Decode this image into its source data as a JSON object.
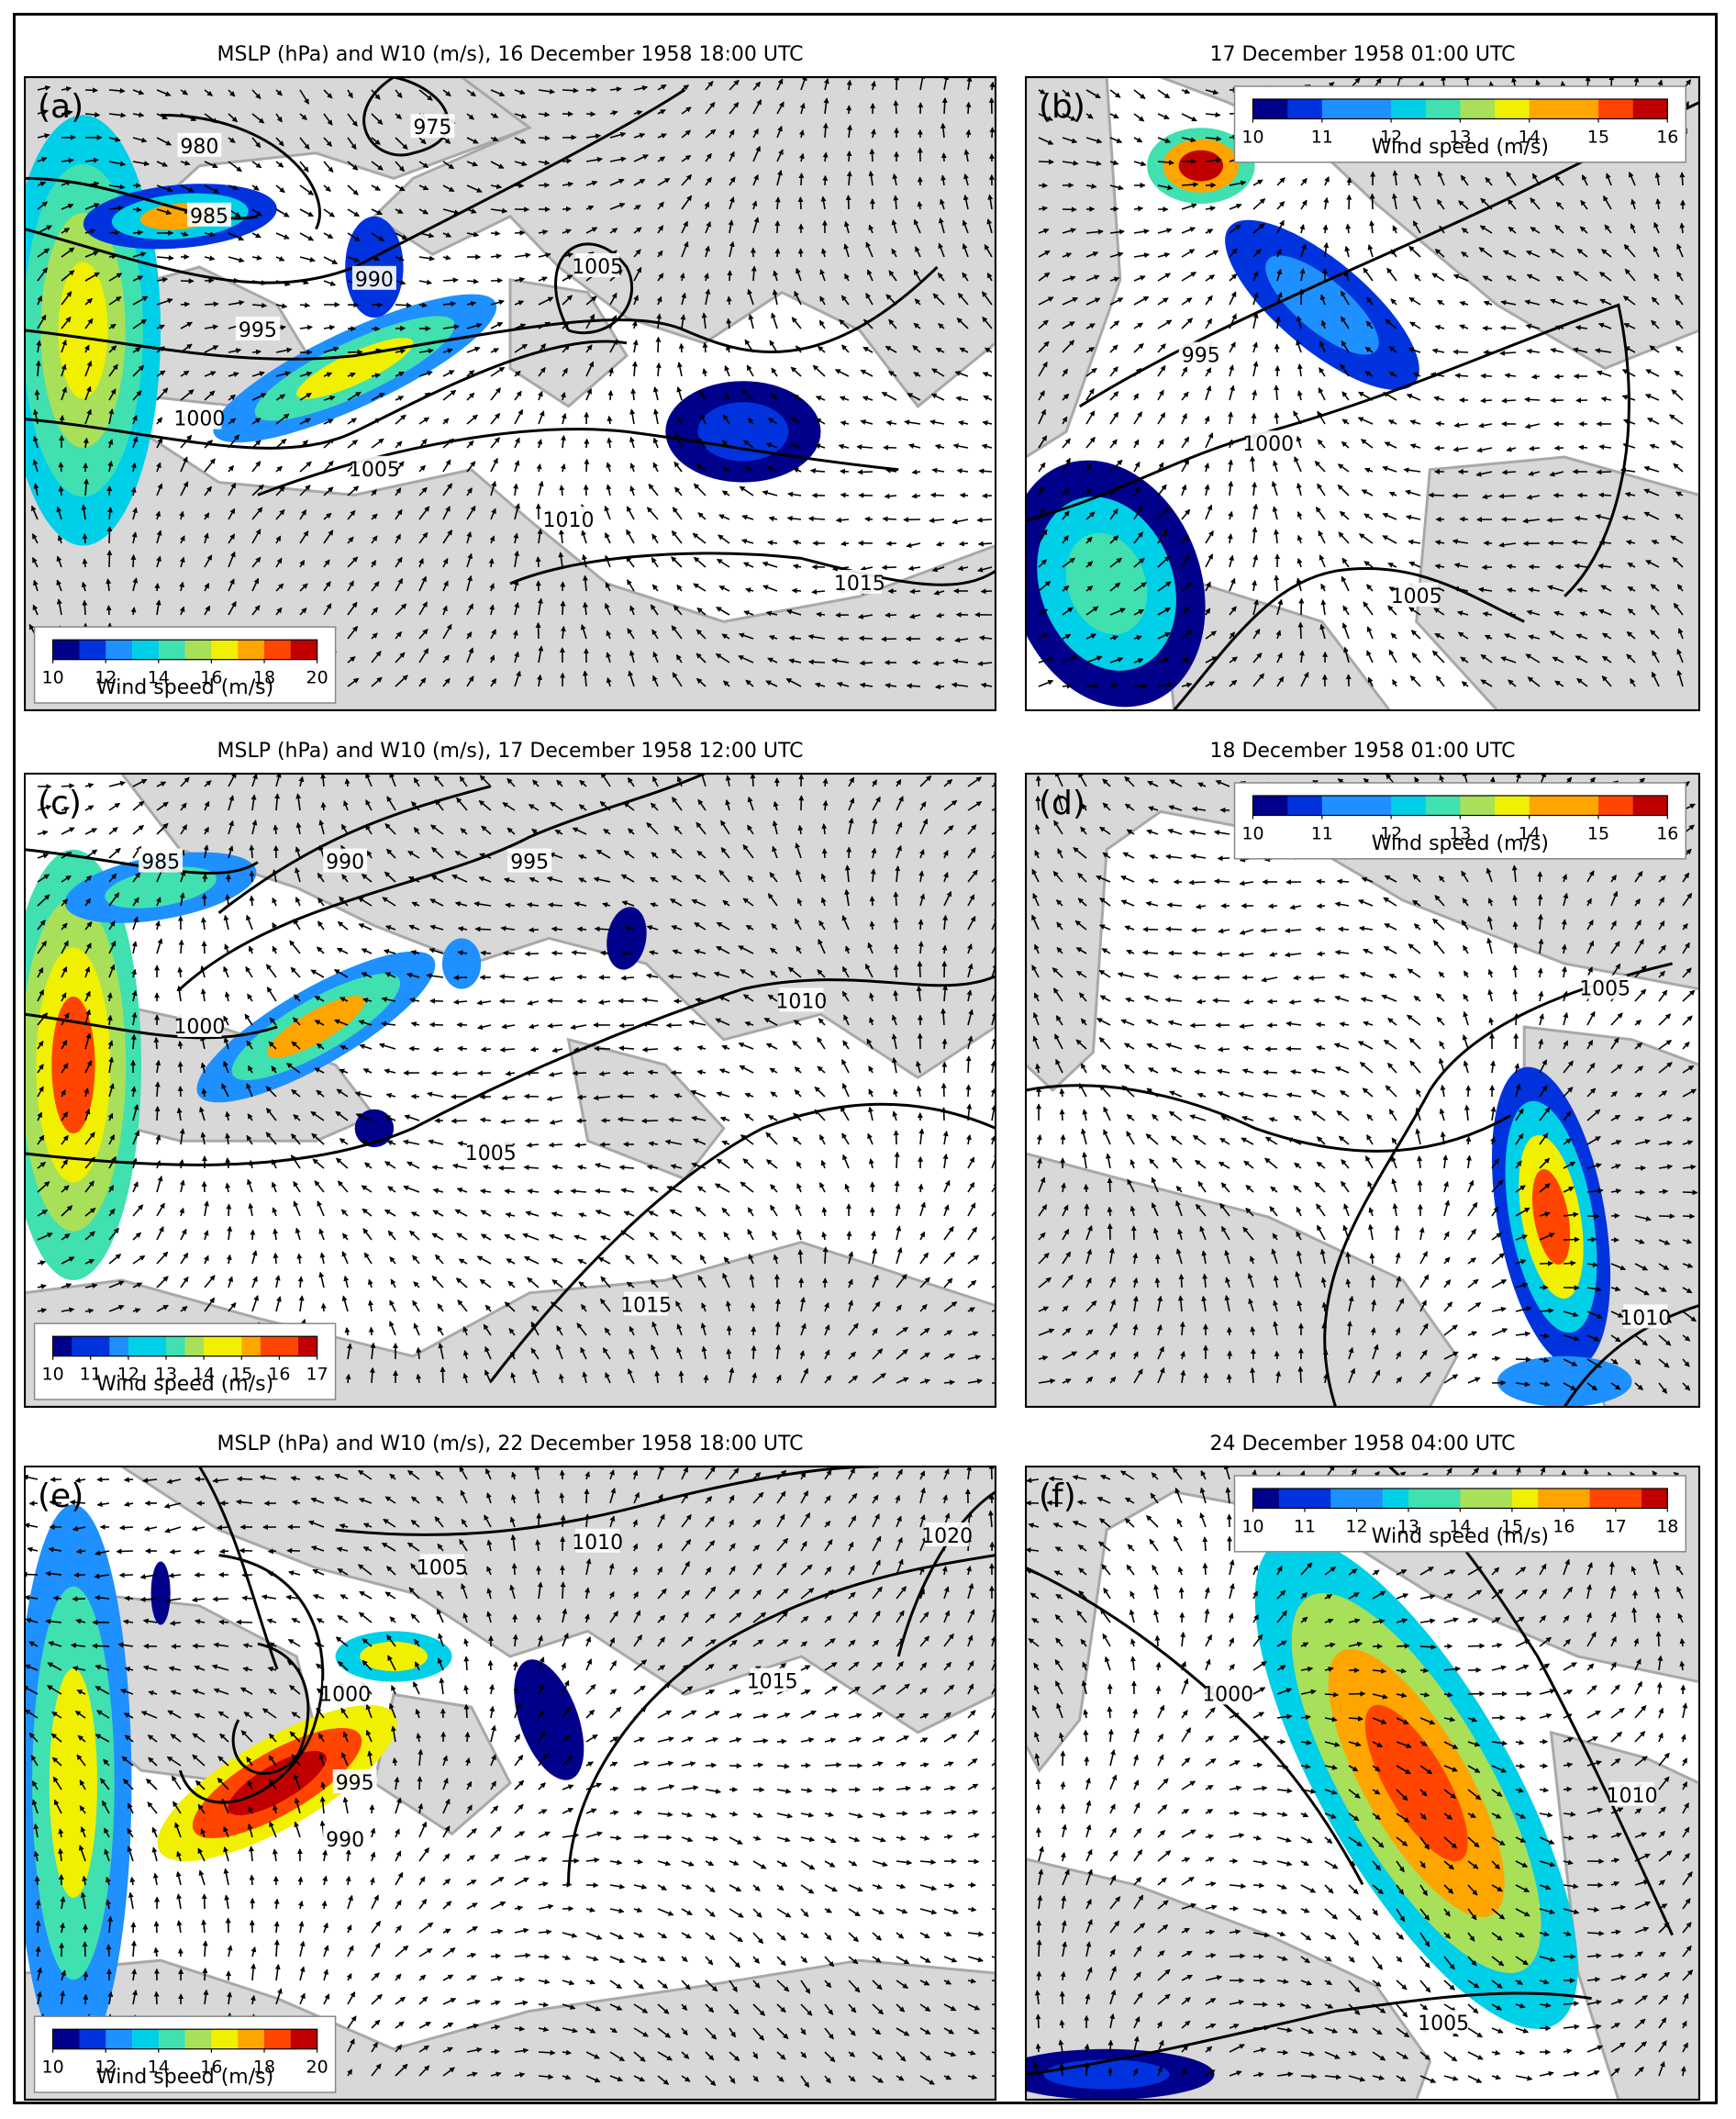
{
  "figure": {
    "panels": [
      {
        "id": "a",
        "label": "(a)",
        "title": "MSLP (hPa) and W10 (m/s), 16 December 1958 18:00 UTC",
        "colorbar": {
          "ticks": [
            "10",
            "12",
            "14",
            "16",
            "18",
            "20"
          ],
          "label": "Wind speed (m/s)"
        },
        "isobar_labels": [
          "975",
          "980",
          "985",
          "990",
          "995",
          "1000",
          "1005",
          "1010",
          "1005",
          "1015"
        ]
      },
      {
        "id": "b",
        "label": "(b)",
        "title": "17 December 1958 01:00 UTC",
        "colorbar": {
          "ticks": [
            "10",
            "11",
            "12",
            "13",
            "14",
            "15",
            "16"
          ],
          "label": "Wind speed (m/s)"
        },
        "isobar_labels": [
          "995",
          "1000",
          "1005"
        ]
      },
      {
        "id": "c",
        "label": "(c)",
        "title": "MSLP (hPa) and W10 (m/s), 17 December 1958 12:00 UTC",
        "colorbar": {
          "ticks": [
            "10",
            "11",
            "12",
            "13",
            "14",
            "15",
            "16",
            "17"
          ],
          "label": "Wind speed (m/s)"
        },
        "isobar_labels": [
          "985",
          "990",
          "995",
          "1000",
          "1005",
          "1010",
          "1015"
        ]
      },
      {
        "id": "d",
        "label": "(d)",
        "title": "18 December 1958 01:00 UTC",
        "colorbar": {
          "ticks": [
            "10",
            "11",
            "12",
            "13",
            "14",
            "15",
            "16"
          ],
          "label": "Wind speed (m/s)"
        },
        "isobar_labels": [
          "1005",
          "1010"
        ]
      },
      {
        "id": "e",
        "label": "(e)",
        "title": "MSLP (hPa) and W10 (m/s), 22 December 1958 18:00 UTC",
        "colorbar": {
          "ticks": [
            "10",
            "12",
            "14",
            "16",
            "18",
            "20"
          ],
          "label": "Wind speed (m/s)"
        },
        "isobar_labels": [
          "1005",
          "1010",
          "1020",
          "1000",
          "995",
          "990",
          "1015"
        ]
      },
      {
        "id": "f",
        "label": "(f)",
        "title": "24 December 1958 04:00 UTC",
        "colorbar": {
          "ticks": [
            "10",
            "11",
            "12",
            "13",
            "14",
            "15",
            "16",
            "17",
            "18"
          ],
          "label": "Wind speed (m/s)"
        },
        "isobar_labels": [
          "1000",
          "1010",
          "1005"
        ]
      }
    ],
    "colormap": [
      "#00008b",
      "#0033dd",
      "#1e90ff",
      "#00cfe8",
      "#40e0b0",
      "#a8e05a",
      "#f0f000",
      "#ffa500",
      "#ff4500",
      "#c00000"
    ],
    "land_color": "#d8d8d8",
    "sea_color": "#ffffff"
  }
}
